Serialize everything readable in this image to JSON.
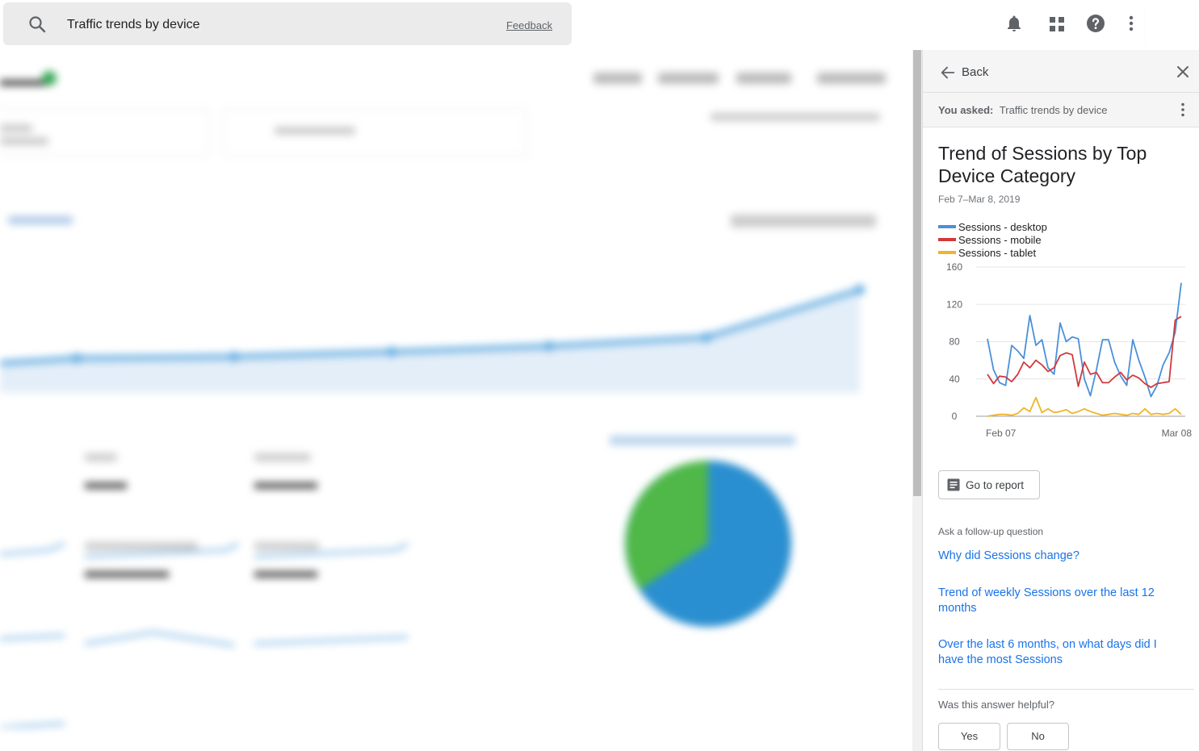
{
  "search": {
    "query": "Traffic trends by device",
    "feedback_label": "Feedback"
  },
  "topbar_icons": [
    "bell-icon",
    "apps-grid-icon",
    "help-icon",
    "more-vert-icon"
  ],
  "panel": {
    "back_label": "Back",
    "asked_prefix": "You asked:",
    "asked_query": "Traffic trends by device",
    "answer_title": "Trend of Sessions by Top Device Category",
    "date_range": "Feb 7–Mar 8, 2019",
    "go_to_report_label": "Go to report",
    "followup_label": "Ask a follow-up question",
    "followups": [
      "Why did Sessions change?",
      "Trend of weekly Sessions over the last 12 months",
      "Over the last 6 months, on what days did I have the most Sessions"
    ],
    "helpful_label": "Was this answer helpful?",
    "yes_label": "Yes",
    "no_label": "No"
  },
  "colors": {
    "desktop": "#4a90d9",
    "mobile": "#d0393e",
    "tablet": "#f0b429",
    "link": "#1a73e8"
  },
  "chart_data": {
    "type": "line",
    "x_tick_labels": [
      "Feb 07",
      "Mar 08"
    ],
    "ylim": [
      0,
      160
    ],
    "y_ticks": [
      0,
      40,
      80,
      120,
      160
    ],
    "series": [
      {
        "name": "Sessions - desktop",
        "values": [
          83,
          50,
          36,
          33,
          76,
          70,
          62,
          108,
          76,
          82,
          52,
          45,
          100,
          80,
          85,
          83,
          40,
          22,
          50,
          82,
          82,
          58,
          43,
          33,
          82,
          60,
          42,
          21,
          33,
          55,
          68,
          90,
          143
        ]
      },
      {
        "name": "Sessions - mobile",
        "values": [
          45,
          35,
          43,
          42,
          37,
          45,
          58,
          52,
          60,
          55,
          48,
          52,
          65,
          68,
          66,
          32,
          58,
          45,
          47,
          36,
          36,
          42,
          47,
          39,
          44,
          41,
          35,
          31,
          35,
          36,
          37,
          103,
          107
        ]
      },
      {
        "name": "Sessions - tablet",
        "values": [
          0,
          1,
          2,
          2,
          1,
          3,
          9,
          5,
          20,
          4,
          8,
          4,
          5,
          7,
          3,
          5,
          8,
          5,
          3,
          1,
          2,
          3,
          2,
          1,
          3,
          2,
          8,
          2,
          3,
          2,
          3,
          8,
          2
        ]
      }
    ]
  }
}
